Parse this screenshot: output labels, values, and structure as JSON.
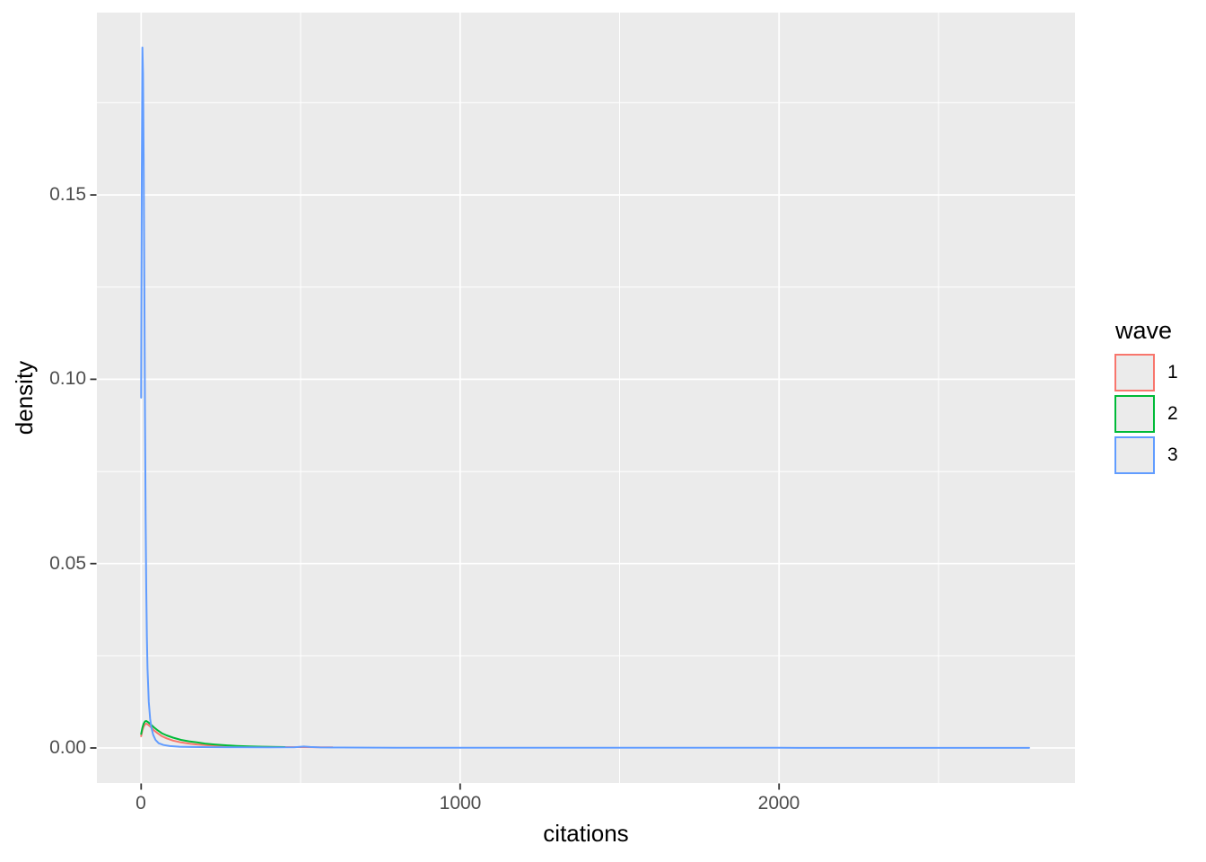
{
  "figure": {
    "kind": "ggplot-density-plot"
  },
  "axes": {
    "x": {
      "title": "citations",
      "ticks": [
        "0",
        "1000",
        "2000"
      ]
    },
    "y": {
      "title": "density",
      "ticks": [
        "0.00",
        "0.05",
        "0.10",
        "0.15"
      ]
    }
  },
  "legend": {
    "title": "wave",
    "items": [
      {
        "label": "1",
        "color": "#F8766D"
      },
      {
        "label": "2",
        "color": "#00BA38"
      },
      {
        "label": "3",
        "color": "#619CFF"
      }
    ]
  },
  "colors": {
    "panel_bg": "#EBEBEB",
    "grid": "#FFFFFF",
    "tick": "#333333",
    "axis_text": "#4D4D4D",
    "axis_title": "#000000",
    "legend_key_fill": "#EBEBEB"
  },
  "chart_data": {
    "type": "line",
    "subtype": "kernel-density",
    "title": "",
    "xlabel": "citations",
    "ylabel": "density",
    "xlim": [
      -146,
      2930
    ],
    "ylim": [
      -0.0095,
      0.1995
    ],
    "x_ticks": [
      0,
      1000,
      2000
    ],
    "x_minor_ticks": [
      500,
      1500,
      2500
    ],
    "y_ticks": [
      0.0,
      0.05,
      0.1,
      0.15
    ],
    "y_minor_ticks": [
      0.025,
      0.075,
      0.125,
      0.175
    ],
    "grid": true,
    "legend_title": "wave",
    "legend_position": "right",
    "series": [
      {
        "name": "1",
        "color": "#F8766D",
        "points": [
          [
            0,
            0.0032
          ],
          [
            4,
            0.0048
          ],
          [
            8,
            0.0058
          ],
          [
            12,
            0.0064
          ],
          [
            16,
            0.0066
          ],
          [
            22,
            0.0063
          ],
          [
            30,
            0.0057
          ],
          [
            40,
            0.0048
          ],
          [
            50,
            0.0041
          ],
          [
            65,
            0.0032
          ],
          [
            80,
            0.0026
          ],
          [
            100,
            0.002
          ],
          [
            125,
            0.0015
          ],
          [
            150,
            0.0012
          ],
          [
            175,
            0.00095
          ],
          [
            200,
            0.00078
          ],
          [
            230,
            0.00062
          ],
          [
            260,
            0.0005
          ],
          [
            300,
            0.0004
          ],
          [
            350,
            0.00032
          ],
          [
            400,
            0.00027
          ],
          [
            450,
            0.00024
          ],
          [
            500,
            0.00022
          ],
          [
            550,
            0.0002
          ],
          [
            600,
            0.00018
          ]
        ]
      },
      {
        "name": "2",
        "color": "#00BA38",
        "points": [
          [
            0,
            0.0038
          ],
          [
            4,
            0.0055
          ],
          [
            8,
            0.0066
          ],
          [
            12,
            0.0072
          ],
          [
            16,
            0.0073
          ],
          [
            22,
            0.007
          ],
          [
            30,
            0.0064
          ],
          [
            40,
            0.0056
          ],
          [
            50,
            0.0049
          ],
          [
            65,
            0.004
          ],
          [
            80,
            0.0034
          ],
          [
            100,
            0.0028
          ],
          [
            125,
            0.0022
          ],
          [
            150,
            0.0018
          ],
          [
            175,
            0.0015
          ],
          [
            200,
            0.0012
          ],
          [
            230,
            0.00095
          ],
          [
            260,
            0.00075
          ],
          [
            300,
            0.00055
          ],
          [
            340,
            0.00042
          ],
          [
            380,
            0.00033
          ],
          [
            420,
            0.00028
          ],
          [
            450,
            0.00025
          ]
        ]
      },
      {
        "name": "3",
        "color": "#619CFF",
        "points": [
          [
            0,
            0.095
          ],
          [
            2,
            0.155
          ],
          [
            4,
            0.19
          ],
          [
            6,
            0.183
          ],
          [
            8,
            0.16
          ],
          [
            10,
            0.125
          ],
          [
            12,
            0.09
          ],
          [
            14,
            0.062
          ],
          [
            16,
            0.043
          ],
          [
            18,
            0.03
          ],
          [
            20,
            0.0215
          ],
          [
            24,
            0.0125
          ],
          [
            28,
            0.008
          ],
          [
            32,
            0.0055
          ],
          [
            38,
            0.0035
          ],
          [
            45,
            0.0022
          ],
          [
            55,
            0.0013
          ],
          [
            70,
            0.0008
          ],
          [
            90,
            0.0005
          ],
          [
            120,
            0.00035
          ],
          [
            160,
            0.00028
          ],
          [
            220,
            0.00022
          ],
          [
            300,
            0.00018
          ],
          [
            400,
            0.00015
          ],
          [
            480,
            0.00018
          ],
          [
            510,
            0.0004
          ],
          [
            530,
            0.00028
          ],
          [
            560,
            0.00015
          ],
          [
            600,
            0.00012
          ],
          [
            800,
            8e-05
          ],
          [
            1100,
            6e-05
          ],
          [
            1500,
            5e-05
          ],
          [
            2000,
            4e-05
          ],
          [
            2400,
            3e-05
          ],
          [
            2784,
            2e-05
          ]
        ]
      }
    ]
  }
}
